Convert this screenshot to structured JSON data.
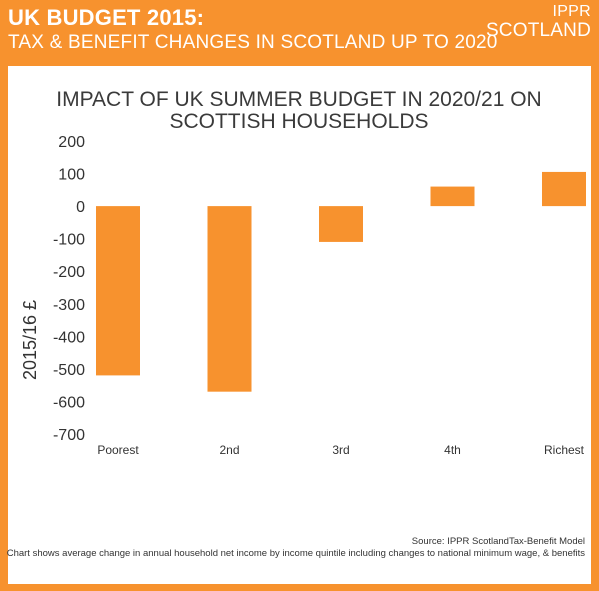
{
  "header": {
    "title": "UK BUDGET 2015:",
    "subtitle": "TAX & BENEFIT CHANGES IN SCOTLAND UP TO 2020",
    "brand_line1": "IPPR",
    "brand_line2": "SCOTLAND"
  },
  "colors": {
    "background": "#f7922e",
    "bar": "#f7922e",
    "panel": "#ffffff"
  },
  "footer": {
    "source": "Source: IPPR ScotlandTax-Benefit Model",
    "note": "Chart shows average change in annual household net income by income quintile including changes to national minimum wage, & benefits"
  },
  "chart_data": {
    "type": "bar",
    "title_lines": [
      "IMPACT OF UK SUMMER BUDGET IN 2020/21 ON",
      "SCOTTISH HOUSEHOLDS"
    ],
    "ylabel": "2015/16 £",
    "categories": [
      "Poorest",
      "2nd",
      "3rd",
      "4th",
      "Richest"
    ],
    "values": [
      -520,
      -570,
      -110,
      60,
      105
    ],
    "ylim": [
      -700,
      200
    ],
    "yticks": [
      200,
      100,
      0,
      -100,
      -200,
      -300,
      -400,
      -500,
      -600,
      -700
    ],
    "grid": false,
    "legend": "none"
  }
}
